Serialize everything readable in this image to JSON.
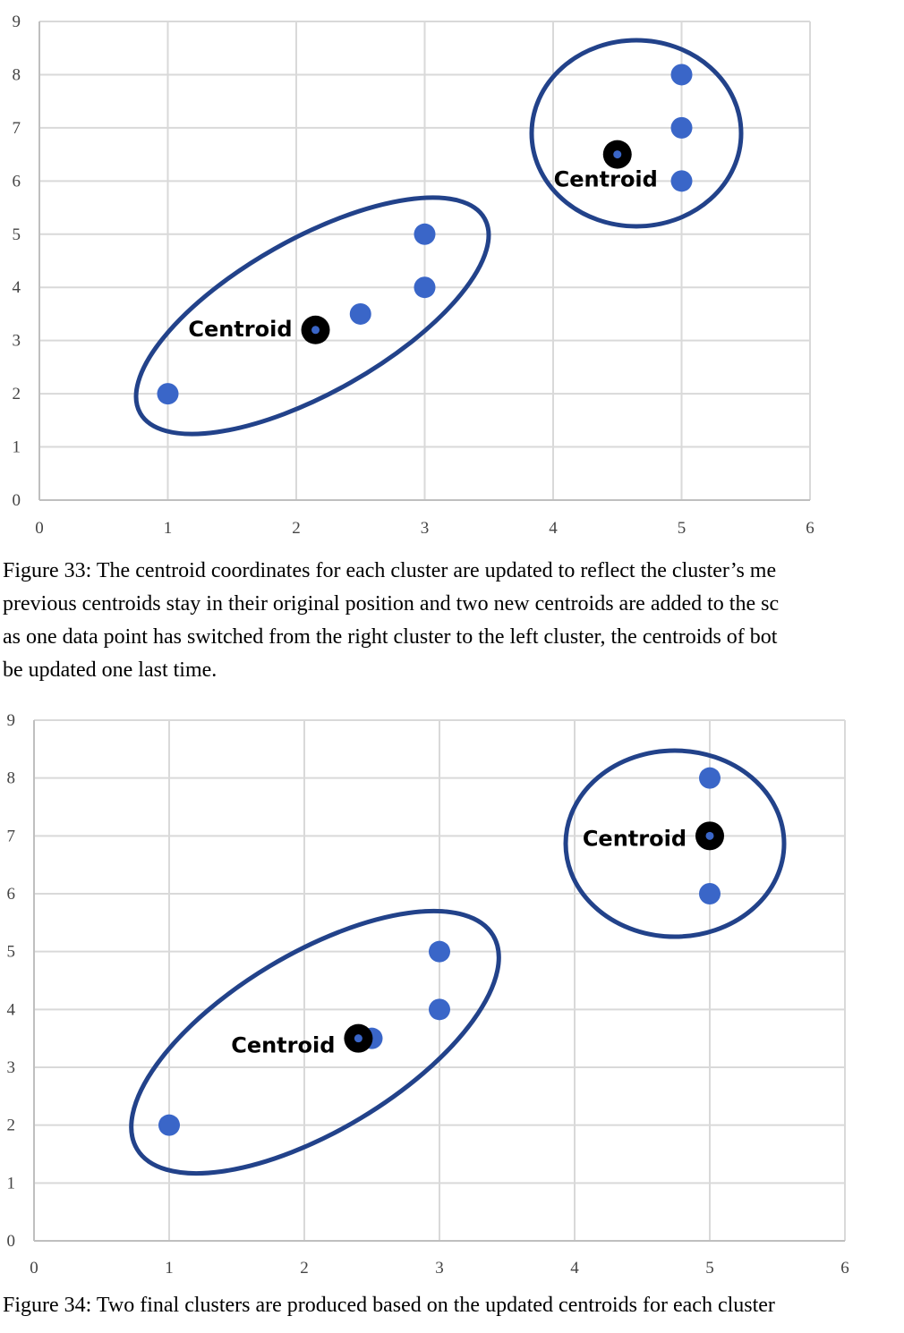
{
  "chart_data": [
    {
      "type": "scatter",
      "title": "",
      "xlabel": "",
      "ylabel": "",
      "xlim": [
        0,
        6
      ],
      "ylim": [
        0,
        9
      ],
      "x_ticks": [
        "0",
        "1",
        "2",
        "3",
        "4",
        "5",
        "6"
      ],
      "y_ticks": [
        "0",
        "1",
        "2",
        "3",
        "4",
        "5",
        "6",
        "7",
        "8",
        "9"
      ],
      "grid": true,
      "colors": {
        "points": "#3a66c8",
        "ellipse": "#22428a",
        "centroid": "#000000",
        "grid": "#d9d9d9"
      },
      "points": [
        {
          "x": 1,
          "y": 2
        },
        {
          "x": 2.5,
          "y": 3.5
        },
        {
          "x": 3,
          "y": 4
        },
        {
          "x": 3,
          "y": 5
        },
        {
          "x": 5,
          "y": 6
        },
        {
          "x": 5,
          "y": 7
        },
        {
          "x": 5,
          "y": 8
        }
      ],
      "centroids": [
        {
          "label": "Centroid",
          "x": 2.15,
          "y": 3.2,
          "label_side": "left"
        },
        {
          "label": "Centroid",
          "x": 4.5,
          "y": 6.5,
          "label_side": "below"
        }
      ]
    },
    {
      "type": "scatter",
      "title": "",
      "xlabel": "",
      "ylabel": "",
      "xlim": [
        0,
        6
      ],
      "ylim": [
        0,
        9
      ],
      "x_ticks": [
        "0",
        "1",
        "2",
        "3",
        "4",
        "5",
        "6"
      ],
      "y_ticks": [
        "0",
        "1",
        "2",
        "3",
        "4",
        "5",
        "6",
        "7",
        "8",
        "9"
      ],
      "grid": true,
      "colors": {
        "points": "#3a66c8",
        "ellipse": "#22428a",
        "centroid": "#000000",
        "grid": "#d9d9d9"
      },
      "points": [
        {
          "x": 1,
          "y": 2
        },
        {
          "x": 2.5,
          "y": 3.5
        },
        {
          "x": 3,
          "y": 4
        },
        {
          "x": 3,
          "y": 5
        },
        {
          "x": 5,
          "y": 6
        },
        {
          "x": 5,
          "y": 8
        }
      ],
      "centroids": [
        {
          "label": "Centroid",
          "x": 2.4,
          "y": 3.5,
          "label_side": "left"
        },
        {
          "label": "Centroid",
          "x": 5,
          "y": 7,
          "label_side": "left"
        }
      ]
    }
  ],
  "captions": [
    {
      "lines": [
        "Figure 33: The centroid coordinates for each cluster are updated to reflect the cluster’s me",
        "previous centroids stay in their original position and two new centroids are added to the sc",
        "as one data point has switched from the right cluster to the left cluster, the centroids of bot",
        "be updated one last time."
      ]
    },
    {
      "lines": [
        "Figure 34: Two final clusters are produced based on the updated centroids for each cluster"
      ]
    }
  ]
}
